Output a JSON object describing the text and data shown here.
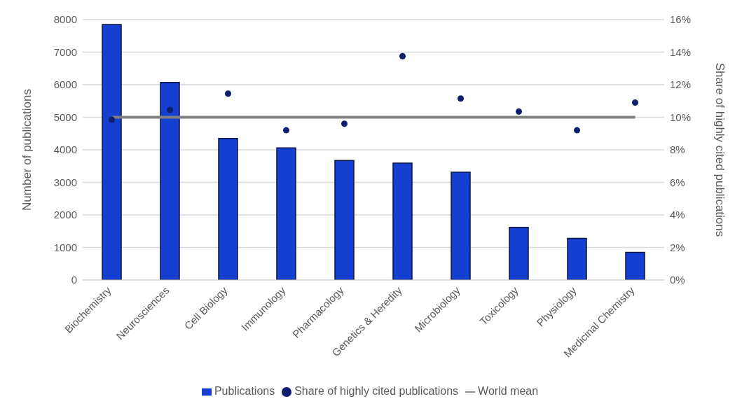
{
  "chart_data": {
    "type": "bar",
    "ylabel": "Number of publications",
    "y2label": "Share of highly cited publications",
    "categories": [
      "Biochemistry",
      "Neurosciences",
      "Cell Biology",
      "Immunology",
      "Pharmacology",
      "Genetics & Heredity",
      "Microbiology",
      "Toxicology",
      "Physiology",
      "Medicinal Chemistry"
    ],
    "series": [
      {
        "name": "Publications",
        "color": "#143fd1",
        "values": [
          7850,
          6070,
          4350,
          4060,
          3670,
          3590,
          3310,
          1620,
          1280,
          850
        ]
      },
      {
        "name": "Share of highly cited publications",
        "type": "scatter",
        "axis": "y2",
        "marker": "circle",
        "color": "#0d1f6e",
        "values": [
          9.85,
          10.45,
          11.45,
          9.2,
          9.6,
          13.75,
          11.15,
          10.35,
          9.2,
          10.9
        ]
      },
      {
        "name": "World mean",
        "type": "line",
        "axis": "y2",
        "color": "#808080",
        "values": [
          10,
          10,
          10,
          10,
          10,
          10,
          10,
          10,
          10,
          10
        ]
      }
    ],
    "ylim": [
      0,
      8000
    ],
    "yticks": [
      0,
      1000,
      2000,
      3000,
      4000,
      5000,
      6000,
      7000,
      8000
    ],
    "y2lim": [
      0,
      16
    ],
    "y2ticks": [
      {
        "value": 0,
        "label": "0%"
      },
      {
        "value": 2,
        "label": "2%"
      },
      {
        "value": 4,
        "label": "4%"
      },
      {
        "value": 6,
        "label": "6%"
      },
      {
        "value": 8,
        "label": "8%"
      },
      {
        "value": 10,
        "label": "10%"
      },
      {
        "value": 12,
        "label": "12%"
      },
      {
        "value": 14,
        "label": "14%"
      },
      {
        "value": 16,
        "label": "16%"
      }
    ],
    "grid": "y",
    "legend": "bottom"
  }
}
